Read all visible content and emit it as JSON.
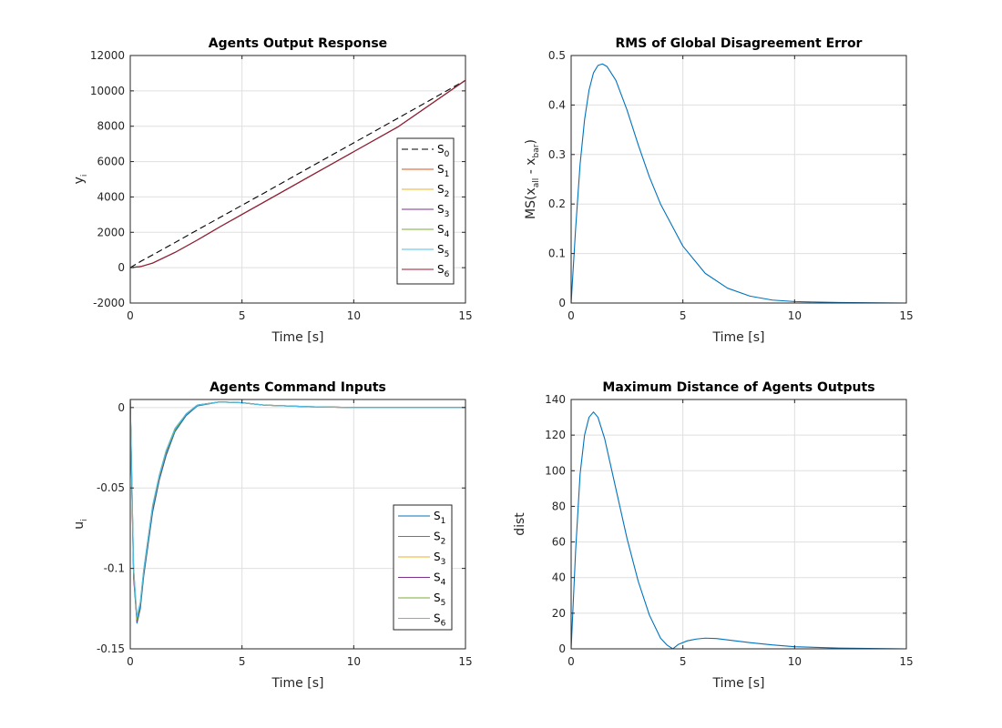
{
  "chart_data": [
    {
      "type": "line",
      "title": "Agents Output Response",
      "xlabel": "Time [s]",
      "ylabel": {
        "main": "y",
        "sub": "i"
      },
      "xlim": [
        0,
        15
      ],
      "ylim": [
        -2000,
        12000
      ],
      "xticks": [
        0,
        5,
        10,
        15
      ],
      "yticks": [
        -2000,
        0,
        2000,
        4000,
        6000,
        8000,
        10000,
        12000
      ],
      "grid": true,
      "legend_position": "right-middle",
      "series": [
        {
          "name": "S",
          "sub": "0",
          "color": "#000000",
          "dash": true,
          "x": [
            0,
            0.5,
            1,
            2,
            3,
            4,
            5,
            6,
            8,
            10,
            12,
            15
          ],
          "y": [
            0,
            380,
            720,
            1420,
            2130,
            2830,
            3530,
            4230,
            5650,
            7060,
            8470,
            10600
          ]
        },
        {
          "name": "S",
          "sub": "1",
          "color": "#d95319",
          "x": [
            0,
            0.5,
            1,
            2,
            3,
            4,
            5,
            6,
            8,
            10,
            12,
            15
          ],
          "y": [
            0,
            70,
            260,
            860,
            1560,
            2300,
            3010,
            3720,
            5140,
            6560,
            7980,
            10600
          ]
        },
        {
          "name": "S",
          "sub": "2",
          "color": "#edb120",
          "x": [
            0,
            0.5,
            1,
            2,
            3,
            4,
            5,
            6,
            8,
            10,
            12,
            15
          ],
          "y": [
            0,
            70,
            260,
            860,
            1560,
            2300,
            3010,
            3720,
            5140,
            6560,
            7980,
            10600
          ]
        },
        {
          "name": "S",
          "sub": "3",
          "color": "#7e2f8e",
          "x": [
            0,
            0.5,
            1,
            2,
            3,
            4,
            5,
            6,
            8,
            10,
            12,
            15
          ],
          "y": [
            0,
            70,
            260,
            860,
            1560,
            2300,
            3010,
            3720,
            5140,
            6560,
            7980,
            10600
          ]
        },
        {
          "name": "S",
          "sub": "4",
          "color": "#77ac30",
          "x": [
            0,
            0.5,
            1,
            2,
            3,
            4,
            5,
            6,
            8,
            10,
            12,
            15
          ],
          "y": [
            0,
            70,
            260,
            860,
            1560,
            2300,
            3010,
            3720,
            5140,
            6560,
            7980,
            10600
          ]
        },
        {
          "name": "S",
          "sub": "5",
          "color": "#4dbeee",
          "x": [
            0,
            0.5,
            1,
            2,
            3,
            4,
            5,
            6,
            8,
            10,
            12,
            15
          ],
          "y": [
            0,
            70,
            260,
            860,
            1560,
            2300,
            3010,
            3720,
            5140,
            6560,
            7980,
            10600
          ]
        },
        {
          "name": "S",
          "sub": "6",
          "color": "#a2142f",
          "x": [
            0,
            0.5,
            1,
            2,
            3,
            4,
            5,
            6,
            8,
            10,
            12,
            15
          ],
          "y": [
            0,
            70,
            260,
            860,
            1560,
            2300,
            3010,
            3720,
            5140,
            6560,
            7980,
            10600
          ]
        }
      ]
    },
    {
      "type": "line",
      "title": "RMS of Global Disagreement Error",
      "xlabel": "Time [s]",
      "ylabel": {
        "main": "MS(x",
        "sub": "all",
        "mid": " - x",
        "sub2": "bar",
        "end": ")"
      },
      "xlim": [
        0,
        15
      ],
      "ylim": [
        0,
        0.5
      ],
      "xticks": [
        0,
        5,
        10,
        15
      ],
      "yticks": [
        0,
        0.1,
        0.2,
        0.3,
        0.4,
        0.5
      ],
      "grid": true,
      "series": [
        {
          "color": "#0072bd",
          "x": [
            0,
            0.2,
            0.4,
            0.6,
            0.8,
            1.0,
            1.2,
            1.4,
            1.6,
            2.0,
            2.5,
            3.0,
            3.5,
            4.0,
            5.0,
            6.0,
            7.0,
            8.0,
            9.0,
            10.0,
            12.0,
            15.0
          ],
          "y": [
            0,
            0.15,
            0.28,
            0.37,
            0.43,
            0.465,
            0.48,
            0.483,
            0.478,
            0.45,
            0.39,
            0.32,
            0.255,
            0.2,
            0.115,
            0.06,
            0.03,
            0.014,
            0.006,
            0.003,
            0.001,
            0.0
          ]
        }
      ]
    },
    {
      "type": "line",
      "title": "Agents Command Inputs",
      "xlabel": "Time [s]",
      "ylabel": {
        "main": "u",
        "sub": "i"
      },
      "xlim": [
        0,
        15
      ],
      "ylim": [
        -0.15,
        0.005
      ],
      "xticks": [
        0,
        5,
        10,
        15
      ],
      "yticks": [
        -0.15,
        -0.1,
        -0.05,
        0
      ],
      "grid": true,
      "legend_position": "lower-right",
      "series": [
        {
          "name": "S",
          "sub": "1",
          "color": "#0072bd",
          "x": [
            0,
            0.05,
            0.15,
            0.3,
            0.45,
            0.6,
            0.8,
            1.0,
            1.3,
            1.6,
            2.0,
            2.5,
            3.0,
            4.0,
            5.0,
            6.0,
            8.0,
            10.0,
            15.0
          ],
          "y": [
            0.005,
            -0.03,
            -0.1,
            -0.134,
            -0.125,
            -0.105,
            -0.085,
            -0.065,
            -0.045,
            -0.03,
            -0.015,
            -0.005,
            0.001,
            0.0035,
            0.003,
            0.0015,
            0.0005,
            0.0,
            0.0
          ]
        },
        {
          "name": "S",
          "sub": "2",
          "color": "#d95319",
          "x": [
            0,
            0.05,
            0.15,
            0.3,
            0.45,
            0.6,
            0.8,
            1.0,
            1.3,
            1.6,
            2.0,
            2.5,
            3.0,
            4.0,
            5.0,
            6.0,
            8.0,
            10.0,
            15.0
          ],
          "y": [
            0.004,
            -0.035,
            -0.105,
            -0.132,
            -0.122,
            -0.102,
            -0.082,
            -0.062,
            -0.043,
            -0.028,
            -0.014,
            -0.004,
            0.0015,
            0.0035,
            0.003,
            0.0015,
            0.0005,
            0.0,
            0.0
          ]
        },
        {
          "name": "S",
          "sub": "3",
          "color": "#edb120",
          "x": [
            0,
            0.05,
            0.15,
            0.3,
            0.45,
            0.6,
            0.8,
            1.0,
            1.3,
            1.6,
            2.0,
            2.5,
            3.0,
            4.0,
            5.0,
            6.0,
            8.0,
            10.0,
            15.0
          ],
          "y": [
            0.004,
            -0.033,
            -0.102,
            -0.131,
            -0.121,
            -0.101,
            -0.081,
            -0.061,
            -0.042,
            -0.027,
            -0.013,
            -0.004,
            0.0015,
            0.0035,
            0.003,
            0.0015,
            0.0005,
            0.0,
            0.0
          ]
        },
        {
          "name": "S",
          "sub": "4",
          "color": "#7e2f8e",
          "x": [
            0,
            0.05,
            0.15,
            0.3,
            0.45,
            0.6,
            0.8,
            1.0,
            1.3,
            1.6,
            2.0,
            2.5,
            3.0,
            4.0,
            5.0,
            6.0,
            8.0,
            10.0,
            15.0
          ],
          "y": [
            0.004,
            -0.036,
            -0.106,
            -0.133,
            -0.123,
            -0.103,
            -0.083,
            -0.063,
            -0.044,
            -0.029,
            -0.014,
            -0.004,
            0.0015,
            0.0035,
            0.003,
            0.0015,
            0.0005,
            0.0,
            0.0
          ]
        },
        {
          "name": "S",
          "sub": "5",
          "color": "#77ac30",
          "x": [
            0,
            0.05,
            0.15,
            0.3,
            0.45,
            0.6,
            0.8,
            1.0,
            1.3,
            1.6,
            2.0,
            2.5,
            3.0,
            4.0,
            5.0,
            6.0,
            8.0,
            10.0,
            15.0
          ],
          "y": [
            0.004,
            -0.034,
            -0.103,
            -0.132,
            -0.122,
            -0.102,
            -0.082,
            -0.062,
            -0.043,
            -0.028,
            -0.014,
            -0.004,
            0.0015,
            0.0035,
            0.003,
            0.0015,
            0.0005,
            0.0,
            0.0
          ]
        },
        {
          "name": "S",
          "sub": "6",
          "color": "#4dbeee",
          "x": [
            0,
            0.05,
            0.15,
            0.3,
            0.45,
            0.6,
            0.8,
            1.0,
            1.3,
            1.6,
            2.0,
            2.5,
            3.0,
            4.0,
            5.0,
            6.0,
            8.0,
            10.0,
            15.0
          ],
          "y": [
            0.005,
            -0.032,
            -0.1,
            -0.13,
            -0.121,
            -0.101,
            -0.081,
            -0.061,
            -0.042,
            -0.027,
            -0.013,
            -0.004,
            0.0015,
            0.0035,
            0.003,
            0.0015,
            0.0005,
            0.0,
            0.0
          ]
        }
      ]
    },
    {
      "type": "line",
      "title": "Maximum Distance of Agents Outputs",
      "xlabel": "Time [s]",
      "ylabel": {
        "main": "dist"
      },
      "xlim": [
        0,
        15
      ],
      "ylim": [
        0,
        140
      ],
      "xticks": [
        0,
        5,
        10,
        15
      ],
      "yticks": [
        0,
        20,
        40,
        60,
        80,
        100,
        120,
        140
      ],
      "grid": true,
      "series": [
        {
          "color": "#0072bd",
          "x": [
            0,
            0.2,
            0.4,
            0.6,
            0.8,
            1.0,
            1.2,
            1.5,
            2.0,
            2.5,
            3.0,
            3.5,
            4.0,
            4.3,
            4.55,
            4.8,
            5.2,
            5.6,
            6.0,
            6.5,
            7.0,
            8.0,
            9.0,
            10.0,
            12.0,
            15.0
          ],
          "y": [
            0,
            55,
            98,
            120,
            130,
            133,
            130,
            118,
            90,
            62,
            38,
            19,
            6,
            2,
            0,
            2.5,
            4.5,
            5.5,
            6,
            5.8,
            5,
            3.5,
            2.2,
            1.2,
            0.4,
            0.0
          ]
        }
      ]
    }
  ]
}
